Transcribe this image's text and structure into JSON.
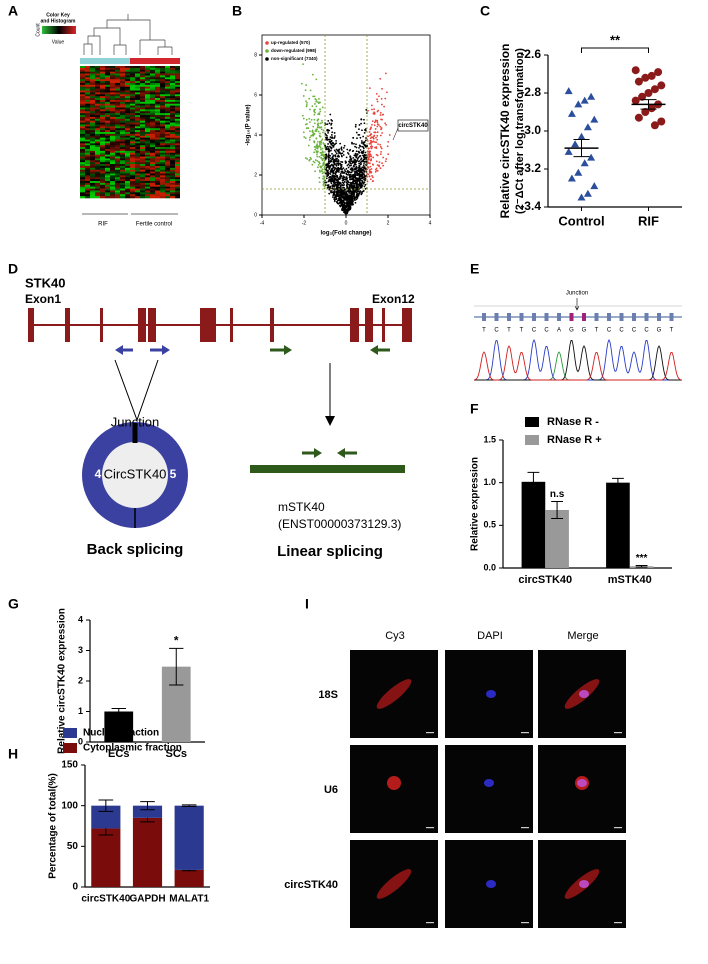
{
  "panel_labels": [
    "A",
    "B",
    "C",
    "D",
    "E",
    "F",
    "G",
    "H",
    "I"
  ],
  "heatmap": {
    "color_key": "Color Key",
    "histogram": "and Histogram",
    "value_label": "Value",
    "count_label": "Count",
    "groups": [
      "RIF",
      "Fertile control"
    ],
    "group_colors": [
      "#8fd3d6",
      "#d1262e"
    ]
  },
  "chart_data": [
    {
      "type": "volcano",
      "xlabel": "log₂(Fold change)",
      "ylabel": "-log₁₀(P value)",
      "xlim": [
        -4,
        4
      ],
      "xticks": [
        -4,
        -2,
        0,
        2,
        4
      ],
      "ylim": [
        0,
        9
      ],
      "yticks": [
        0,
        2,
        4,
        6,
        8
      ],
      "series": [
        {
          "name": "up-regulated (570)",
          "color": "#e8453c"
        },
        {
          "name": "down-regulated (998)",
          "color": "#6ab23e"
        },
        {
          "name": "non-significant (7340)",
          "color": "#000000"
        }
      ],
      "fc_thresholds": [
        -1,
        1
      ],
      "p_threshold": 1.3,
      "annotation": "circSTK40"
    },
    {
      "type": "strip",
      "ylabel": "Relative circSTK40 expression",
      "ylabel2": "(2⁻ΔCt after log transformation)",
      "significance": "**",
      "ylim": [
        -3.4,
        -2.6
      ],
      "yticks": [
        -2.6,
        -2.8,
        {
          "value": -3,
          "label": "-3.0"
        },
        -3.2,
        -3.4
      ],
      "series": [
        {
          "name": "Control",
          "color": "#2b4f9c",
          "marker": "triangle",
          "values": [
            -2.79,
            -2.82,
            -2.84,
            -2.86,
            -2.91,
            -2.94,
            -2.98,
            -3.03,
            -3.07,
            -3.11,
            -3.14,
            -3.17,
            -3.22,
            -3.25,
            -3.29,
            -3.33,
            -3.35
          ],
          "mean": -3.09,
          "error": 0.045
        },
        {
          "name": "RIF",
          "color": "#8b1a1a",
          "marker": "circle",
          "values": [
            -2.68,
            -2.69,
            -2.71,
            -2.72,
            -2.74,
            -2.76,
            -2.78,
            -2.8,
            -2.82,
            -2.84,
            -2.86,
            -2.88,
            -2.9,
            -2.93,
            -2.95,
            -2.97
          ],
          "mean": -2.86,
          "error": 0.025
        }
      ]
    },
    {
      "type": "bar",
      "ylabel": "Relative expression",
      "categories": [
        "circSTK40",
        "mSTK40"
      ],
      "series": [
        {
          "name": "RNase R -",
          "color": "#000000",
          "values": [
            1.01,
            1.0
          ],
          "errors": [
            0.11,
            0.05
          ]
        },
        {
          "name": "RNase R +",
          "color": "#999999",
          "values": [
            0.68,
            0.02
          ],
          "errors": [
            0.1,
            0.01
          ]
        }
      ],
      "annotations": [
        "n.s",
        "***"
      ],
      "ylim": [
        0,
        1.5
      ],
      "yticks": [
        {
          "value": 0,
          "label": "0.0"
        },
        0.5,
        {
          "value": 1,
          "label": "1.0"
        },
        1.5
      ]
    },
    {
      "type": "bar",
      "ylabel": "Relative circSTK40 expression",
      "categories": [
        "ECs",
        "SCs"
      ],
      "series": [
        {
          "colors": [
            "#000000",
            "#999999"
          ],
          "values": [
            1.0,
            2.47
          ],
          "errors": [
            0.1,
            0.6
          ]
        }
      ],
      "annotation": "*",
      "ylim": [
        0,
        4
      ],
      "yticks": [
        0,
        1,
        2,
        3,
        4
      ]
    },
    {
      "type": "stacked_bar",
      "ylabel": "Percentage of total(%)",
      "categories": [
        "circSTK40",
        "GAPDH",
        "MALAT1"
      ],
      "series": [
        {
          "name": "Nuclear fraction",
          "color": "#2b3990",
          "values": [
            28,
            15,
            79
          ],
          "errors": [
            7,
            5,
            1
          ]
        },
        {
          "name": "Cytoplasmic fraction",
          "color": "#7b0c0c",
          "values": [
            72,
            85,
            21
          ],
          "errors": [
            8,
            5,
            1
          ]
        }
      ],
      "ylim": [
        0,
        150
      ],
      "yticks": [
        0,
        50,
        100,
        150
      ]
    }
  ],
  "diagram": {
    "gene": "STK40",
    "exon_first": "Exon1",
    "exon_last": "Exon12",
    "junction": "Junction",
    "circ_name": "CircSTK40",
    "exon_left": "4",
    "exon_right": "5",
    "back": "Back splicing",
    "linear_name": "mSTK40",
    "linear_id": "(ENST00000373129.3)",
    "linear": "Linear splicing"
  },
  "sequencing": {
    "junction": "Junction",
    "bases": [
      "T",
      "C",
      "T",
      "T",
      "C",
      "C",
      "A",
      "G",
      "G",
      "T",
      "C",
      "C",
      "C",
      "C",
      "G",
      "T"
    ]
  },
  "imaging": {
    "columns": [
      "Cy3",
      "DAPI",
      "Merge"
    ],
    "rows": [
      "18S",
      "U6",
      "circSTK40"
    ]
  }
}
